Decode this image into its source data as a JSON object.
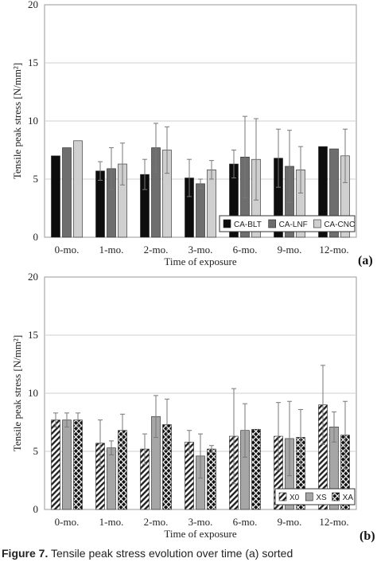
{
  "chart_data": [
    {
      "type": "bar",
      "panel_label": "(a)",
      "xlabel": "Time of exposure",
      "ylabel": "Tensile peak stress [N/mm²]",
      "ylim": [
        0,
        20
      ],
      "yticks": [
        0,
        5,
        10,
        15,
        20
      ],
      "grid": true,
      "legend_position": "bottom-right",
      "categories": [
        "0-mo.",
        "1-mo.",
        "2-mo.",
        "3-mo.",
        "6-mo.",
        "9-mo.",
        "12-mo."
      ],
      "series": [
        {
          "name": "CA-BLT",
          "color": "#0d0d0d",
          "pattern": "solid",
          "values": [
            7.0,
            5.7,
            5.4,
            5.1,
            6.3,
            6.8,
            7.8
          ],
          "errors": [
            0.0,
            0.8,
            1.3,
            1.6,
            1.2,
            2.5,
            0.0
          ]
        },
        {
          "name": "CA-LNF",
          "color": "#6e6e6e",
          "pattern": "solid",
          "values": [
            7.7,
            5.9,
            7.7,
            4.6,
            6.9,
            6.1,
            7.6
          ],
          "errors": [
            0.0,
            1.8,
            2.1,
            0.4,
            3.5,
            3.1,
            0.0
          ]
        },
        {
          "name": "CA-CNC",
          "color": "#cfcfcf",
          "pattern": "solid",
          "values": [
            8.3,
            6.3,
            7.5,
            5.8,
            6.7,
            5.8,
            7.0
          ],
          "errors": [
            0.0,
            1.8,
            2.0,
            0.8,
            3.5,
            2.0,
            2.3
          ]
        }
      ]
    },
    {
      "type": "bar",
      "panel_label": "(b)",
      "xlabel": "Time of exposure",
      "ylabel": "Tensile peak stress [N/mm²]",
      "ylim": [
        0,
        20
      ],
      "yticks": [
        0,
        5,
        10,
        15,
        20
      ],
      "grid": true,
      "legend_position": "bottom-right",
      "categories": [
        "0-mo.",
        "1-mo.",
        "2-mo.",
        "3-mo.",
        "6-mo.",
        "9-mo.",
        "12-mo."
      ],
      "series": [
        {
          "name": "X0",
          "color": "#3a3a3a",
          "pattern": "hatch",
          "values": [
            7.7,
            5.7,
            5.2,
            5.8,
            6.3,
            6.3,
            9.0
          ],
          "errors": [
            0.6,
            2.0,
            1.3,
            1.0,
            4.1,
            2.9,
            3.4
          ]
        },
        {
          "name": "XS",
          "color": "#a6a6a6",
          "pattern": "solid",
          "values": [
            7.7,
            5.3,
            8.0,
            4.6,
            6.8,
            6.1,
            7.1
          ],
          "errors": [
            0.6,
            0.6,
            1.8,
            1.9,
            2.3,
            3.2,
            1.3
          ]
        },
        {
          "name": "XA",
          "color": "#1a1a1a",
          "pattern": "crosshatch",
          "values": [
            7.7,
            6.8,
            7.3,
            5.2,
            6.9,
            6.2,
            6.4
          ],
          "errors": [
            0.6,
            1.4,
            2.2,
            0.3,
            0.0,
            2.4,
            2.9
          ]
        }
      ]
    }
  ],
  "caption": {
    "label": "Figure 7.",
    "text": "Tensile peak stress evolution over time (a) sorted"
  }
}
